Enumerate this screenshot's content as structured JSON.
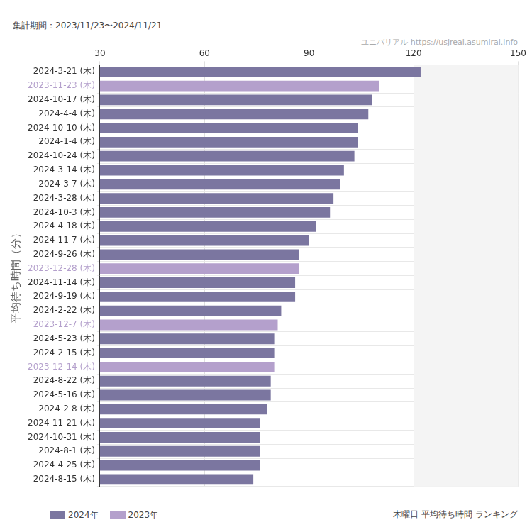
{
  "chart_data": {
    "type": "bar",
    "orientation": "horizontal",
    "title": "木曜日 平均待ち時間 ランキング",
    "subtitle": "集計期間：2023/11/23〜2024/11/21",
    "y_label": "平均待ち時間（分）",
    "annotations": [
      "ユニバリアル https://usjreal.asumirai.info"
    ],
    "categories": [
      "2024-3-21 (木)",
      "2023-11-23 (木)",
      "2024-10-17 (木)",
      "2024-4-4 (木)",
      "2024-10-10 (木)",
      "2024-1-4 (木)",
      "2024-10-24 (木)",
      "2024-3-14 (木)",
      "2024-3-7 (木)",
      "2024-3-28 (木)",
      "2024-10-3 (木)",
      "2024-4-18 (木)",
      "2024-11-7 (木)",
      "2024-9-26 (木)",
      "2023-12-28 (木)",
      "2024-11-14 (木)",
      "2024-9-19 (木)",
      "2024-2-22 (木)",
      "2023-12-7 (木)",
      "2024-5-23 (木)",
      "2024-2-15 (木)",
      "2023-12-14 (木)",
      "2024-8-22 (木)",
      "2024-5-16 (木)",
      "2024-2-8 (木)",
      "2024-11-21 (木)",
      "2024-10-31 (木)",
      "2024-8-1 (木)",
      "2024-4-25 (木)",
      "2024-8-15 (木)"
    ],
    "series": [
      {
        "name": "2024年",
        "color": "#7b76a0",
        "values": [
          122,
          null,
          108,
          107,
          104,
          104,
          103,
          100,
          99,
          97,
          96,
          92,
          90,
          87,
          null,
          86,
          86,
          82,
          null,
          80,
          80,
          null,
          79,
          79,
          78,
          76,
          76,
          76,
          76,
          74
        ]
      },
      {
        "name": "2023年",
        "color": "#b4a0cc",
        "values": [
          null,
          110,
          null,
          null,
          null,
          null,
          null,
          null,
          null,
          null,
          null,
          null,
          null,
          null,
          87,
          null,
          null,
          null,
          81,
          null,
          null,
          80,
          null,
          null,
          null,
          null,
          null,
          null,
          null,
          null
        ]
      }
    ],
    "xlim": [
      30,
      150
    ],
    "xticks": [
      30,
      60,
      90,
      120,
      150
    ],
    "grid": true,
    "legend": "bottom-left"
  }
}
